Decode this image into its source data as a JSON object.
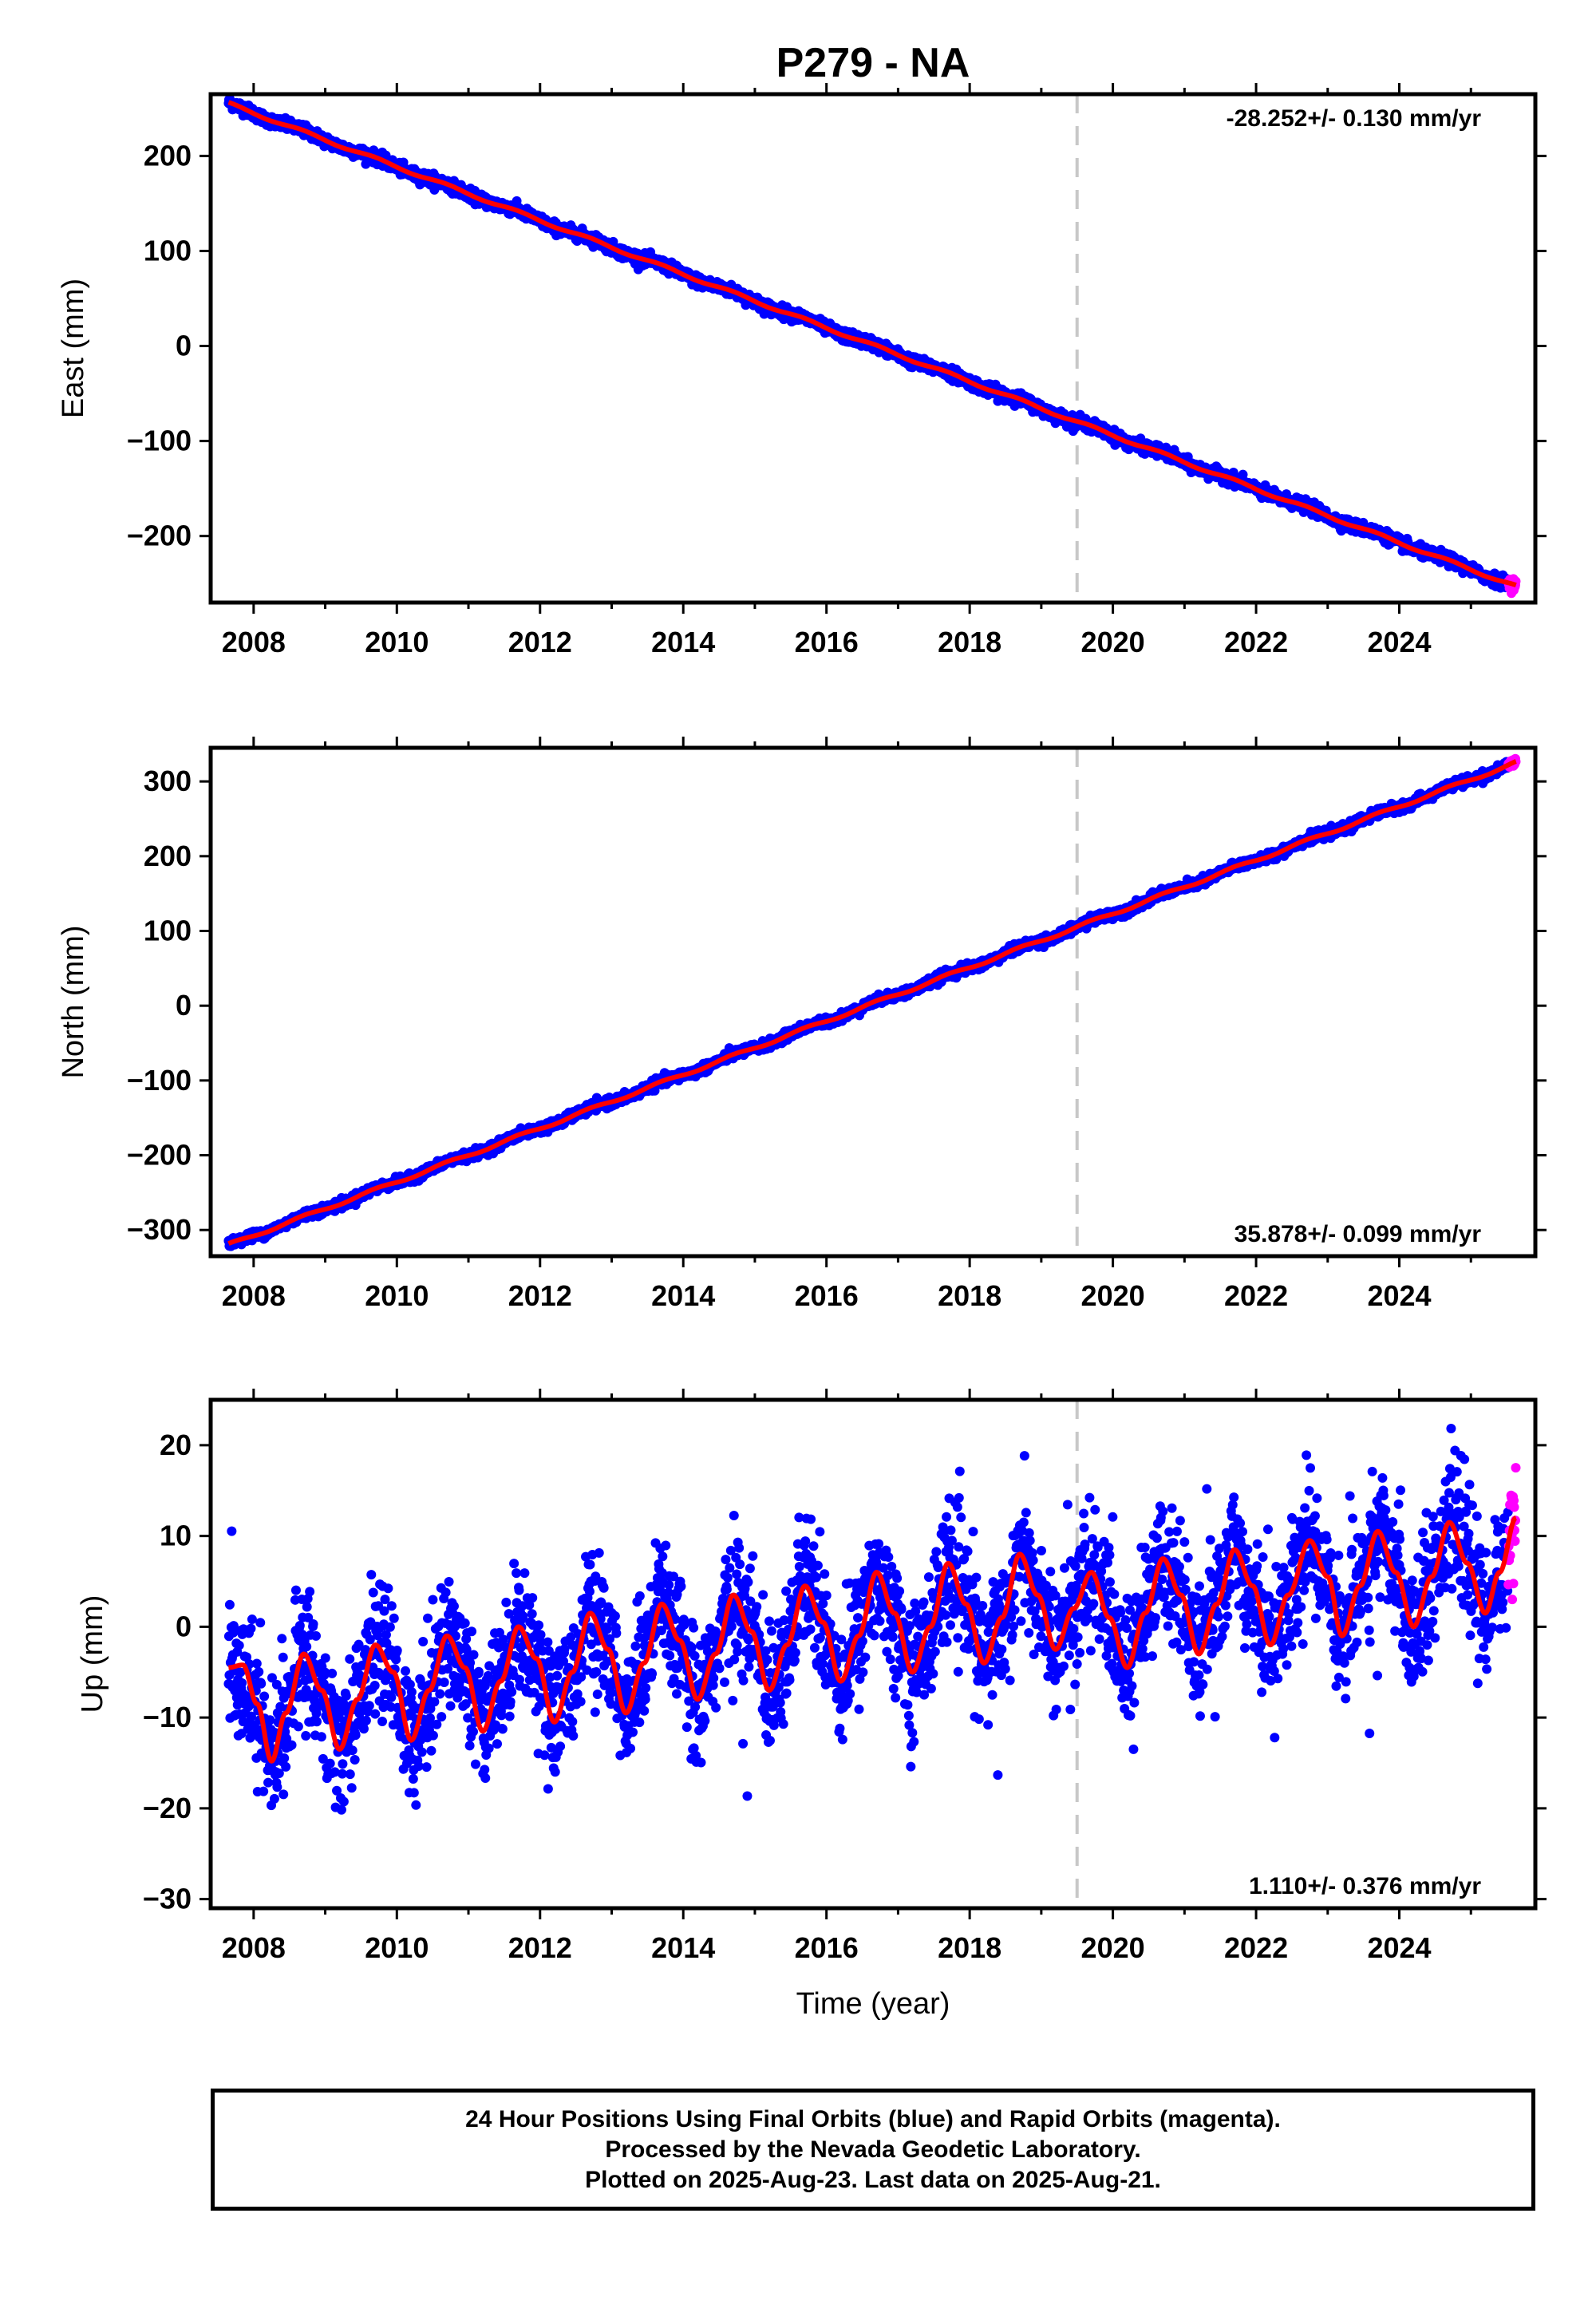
{
  "title": "P279 - NA",
  "colors": {
    "final_orbits": "#0000ff",
    "rapid_orbits": "#ff00ff",
    "model_fit": "#ff0000",
    "reference_line": "#c8c8c8"
  },
  "footer": {
    "line1": "24 Hour Positions Using Final Orbits (blue) and Rapid Orbits (magenta).",
    "line2": "Processed by the Nevada Geodetic Laboratory.",
    "line3": "Plotted on 2025-Aug-23. Last data on 2025-Aug-21."
  },
  "chart_data": [
    {
      "type": "scatter",
      "name": "east",
      "ylabel": "East (mm)",
      "xlabel": "",
      "xlim": [
        2007.4,
        2025.9
      ],
      "ylim": [
        -270,
        265
      ],
      "xticks": [
        2008,
        2010,
        2012,
        2014,
        2016,
        2018,
        2020,
        2022,
        2024
      ],
      "yticks": [
        -200,
        -100,
        0,
        100,
        200
      ],
      "ytick_labels": [
        "−200",
        "−100",
        "0",
        "100",
        "200"
      ],
      "reference_line_x": 2019.5,
      "rate_label": "-28.252+/- 0.130 mm/yr",
      "rate_label_position": "top-right",
      "data_range": [
        2007.65,
        2025.63
      ],
      "rapid_start": 2025.52,
      "trend": {
        "start": 255,
        "rate": -28.252,
        "annual_amp": 1.5,
        "noise": 3
      }
    },
    {
      "type": "scatter",
      "name": "north",
      "ylabel": "North (mm)",
      "xlabel": "",
      "xlim": [
        2007.4,
        2025.9
      ],
      "ylim": [
        -335,
        345
      ],
      "xticks": [
        2008,
        2010,
        2012,
        2014,
        2016,
        2018,
        2020,
        2022,
        2024
      ],
      "yticks": [
        -300,
        -200,
        -100,
        0,
        100,
        200,
        300
      ],
      "ytick_labels": [
        "−300",
        "−200",
        "−100",
        "0",
        "100",
        "200",
        "300"
      ],
      "reference_line_x": 2019.5,
      "rate_label": "35.878+/- 0.099 mm/yr",
      "rate_label_position": "bottom-right",
      "data_range": [
        2007.65,
        2025.63
      ],
      "rapid_start": 2025.52,
      "trend": {
        "start": -320,
        "rate": 35.878,
        "annual_amp": 2,
        "noise": 3
      }
    },
    {
      "type": "scatter",
      "name": "up",
      "ylabel": "Up (mm)",
      "xlabel": "Time (year)",
      "xlim": [
        2007.4,
        2025.9
      ],
      "ylim": [
        -31,
        25
      ],
      "xticks": [
        2008,
        2010,
        2012,
        2014,
        2016,
        2018,
        2020,
        2022,
        2024
      ],
      "yticks": [
        -30,
        -20,
        -10,
        0,
        10,
        20
      ],
      "ytick_labels": [
        "−30",
        "−20",
        "−10",
        "0",
        "10",
        "20"
      ],
      "reference_line_x": 2019.5,
      "rate_label": "1.110+/- 0.376 mm/yr",
      "rate_label_position": "bottom-right",
      "data_range": [
        2007.65,
        2025.63
      ],
      "rapid_start": 2025.52,
      "trend": {
        "start": -10,
        "rate": 1.11,
        "annual_amp": 5.6,
        "noise": 3.5
      },
      "model_points": [
        [
          2007.65,
          -4.5
        ],
        [
          2007.85,
          -4.2
        ],
        [
          2008.05,
          -8.5
        ],
        [
          2008.25,
          -14.8
        ],
        [
          2008.45,
          -9.5
        ],
        [
          2008.7,
          -3
        ],
        [
          2008.95,
          -7
        ],
        [
          2009.2,
          -13.5
        ],
        [
          2009.45,
          -8
        ],
        [
          2009.7,
          -2
        ],
        [
          2009.95,
          -5
        ],
        [
          2010.2,
          -12.5
        ],
        [
          2010.45,
          -7
        ],
        [
          2010.7,
          -1
        ],
        [
          2010.95,
          -4.5
        ],
        [
          2011.2,
          -11.5
        ],
        [
          2011.45,
          -6
        ],
        [
          2011.7,
          0
        ],
        [
          2011.95,
          -3.5
        ],
        [
          2012.2,
          -10.5
        ],
        [
          2012.45,
          -5
        ],
        [
          2012.7,
          1.5
        ],
        [
          2012.95,
          -2.5
        ],
        [
          2013.2,
          -9.5
        ],
        [
          2013.45,
          -4
        ],
        [
          2013.7,
          2.5
        ],
        [
          2013.95,
          -1.5
        ],
        [
          2014.2,
          -8
        ],
        [
          2014.45,
          -3
        ],
        [
          2014.7,
          3.5
        ],
        [
          2014.95,
          -0.5
        ],
        [
          2015.2,
          -7
        ],
        [
          2015.45,
          -2
        ],
        [
          2015.7,
          4.5
        ],
        [
          2015.95,
          0.5
        ],
        [
          2016.2,
          -6
        ],
        [
          2016.45,
          -1
        ],
        [
          2016.7,
          6
        ],
        [
          2016.95,
          1.5
        ],
        [
          2017.2,
          -5
        ],
        [
          2017.45,
          0
        ],
        [
          2017.7,
          7
        ],
        [
          2017.95,
          2.5
        ],
        [
          2018.2,
          -4
        ],
        [
          2018.45,
          1
        ],
        [
          2018.7,
          8
        ],
        [
          2018.95,
          3.5
        ],
        [
          2019.2,
          -2.5
        ],
        [
          2019.45,
          2
        ],
        [
          2019.7,
          6
        ],
        [
          2019.95,
          1
        ],
        [
          2020.2,
          -4.5
        ],
        [
          2020.45,
          1.5
        ],
        [
          2020.7,
          7.5
        ],
        [
          2020.95,
          3.5
        ],
        [
          2021.2,
          -3
        ],
        [
          2021.45,
          2.5
        ],
        [
          2021.7,
          8.5
        ],
        [
          2021.95,
          4.5
        ],
        [
          2022.2,
          -2
        ],
        [
          2022.45,
          3.5
        ],
        [
          2022.75,
          9.5
        ],
        [
          2023.0,
          5.5
        ],
        [
          2023.2,
          -1
        ],
        [
          2023.45,
          4.5
        ],
        [
          2023.7,
          10.5
        ],
        [
          2023.95,
          6
        ],
        [
          2024.2,
          0
        ],
        [
          2024.45,
          5.5
        ],
        [
          2024.7,
          11.5
        ],
        [
          2024.95,
          7
        ],
        [
          2025.2,
          1.5
        ],
        [
          2025.4,
          6
        ],
        [
          2025.63,
          12
        ]
      ]
    }
  ]
}
